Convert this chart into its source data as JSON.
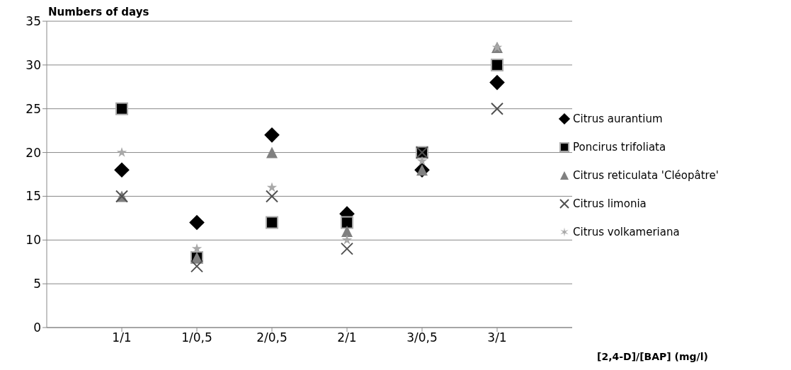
{
  "chart_data": {
    "type": "scatter",
    "ylabel": "Numbers of days",
    "xlabel": "[2,4-D]/[BAP] (mg/l)",
    "categories": [
      "1/1",
      "1/0,5",
      "2/0,5",
      "2/1",
      "3/0,5",
      "3/1"
    ],
    "series": [
      {
        "name": "Citrus aurantium",
        "color": "#000000",
        "marker": "diamond",
        "values": [
          18,
          12,
          22,
          13,
          18,
          28
        ]
      },
      {
        "name": "Poncirus trifoliata",
        "color": "#000000",
        "marker": "square",
        "values": [
          25,
          8,
          12,
          12,
          20,
          30
        ]
      },
      {
        "name": "Citrus reticulata 'Cléopâtre'",
        "color": "#808080",
        "marker": "triangle",
        "values": [
          15,
          8,
          20,
          11,
          18,
          32
        ]
      },
      {
        "name": "Citrus limonia",
        "color": "#505050",
        "marker": "cross",
        "values": [
          15,
          7,
          15,
          9,
          20,
          25
        ]
      },
      {
        "name": "Citrus volkameriana",
        "color": "#a8a8a8",
        "marker": "star",
        "values": [
          20,
          9,
          16,
          10,
          19,
          32
        ]
      }
    ],
    "ylim": [
      0,
      35
    ],
    "yticks": [
      0,
      5,
      10,
      15,
      20,
      25,
      30,
      35
    ],
    "grid": "y",
    "legend": "right"
  }
}
